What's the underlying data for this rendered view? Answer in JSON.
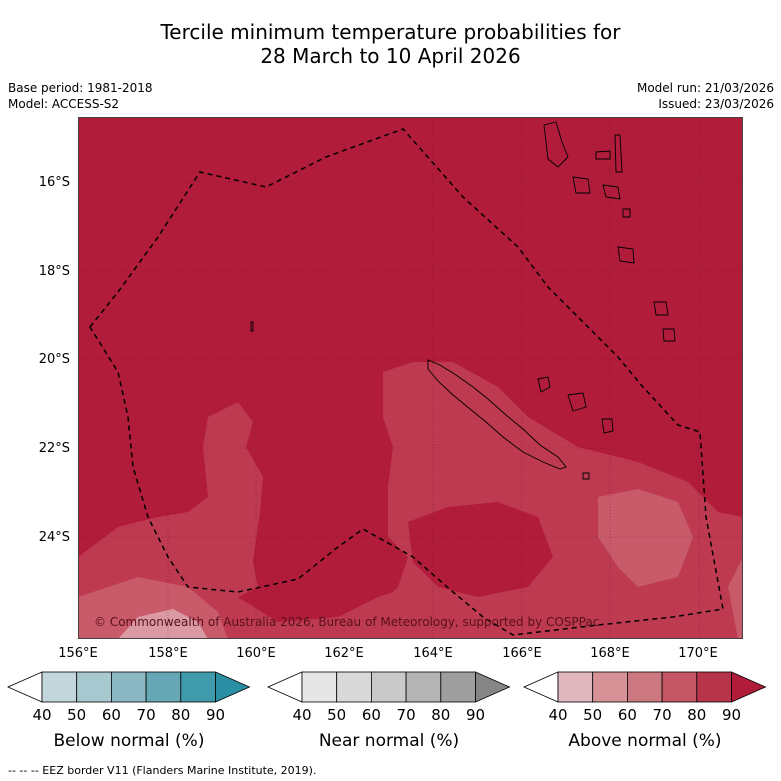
{
  "title_line1": "Tercile minimum temperature probabilities for",
  "title_line2": "28 March to 10 April 2026",
  "base_period": "Base period: 1981-2018",
  "model": "Model: ACCESS-S2",
  "model_run": "Model run: 21/03/2026",
  "issued": "Issued: 23/03/2026",
  "copyright": "© Commonwealth of Australia 2026, Bureau of Meteorology, supported by COSPPac",
  "footnote": "--  --  -- EEZ border V11 (Flanders Marine Institute, 2019).",
  "map": {
    "lat_labels": [
      "16°S",
      "18°S",
      "20°S",
      "22°S",
      "24°S"
    ],
    "lon_labels": [
      "156°E",
      "158°E",
      "160°E",
      "162°E",
      "164°E",
      "166°E",
      "168°E",
      "170°E"
    ],
    "base_color": "#b01c3a",
    "lighter_color": "#bd3a50",
    "lightest_color": "#c85a6a",
    "pale_color": "#d99aa3"
  },
  "colorbars": [
    {
      "name": "Below normal (%)",
      "ticks": [
        "40",
        "50",
        "60",
        "70",
        "80",
        "90"
      ],
      "colors": [
        "#c2d6dc",
        "#a7c8cf",
        "#8bb8c2",
        "#66a7b5",
        "#3f9aab",
        "#2a8fa3"
      ]
    },
    {
      "name": "Near normal (%)",
      "ticks": [
        "40",
        "50",
        "60",
        "70",
        "80",
        "90"
      ],
      "colors": [
        "#e6e6e6",
        "#d9d9d9",
        "#c9c9c9",
        "#b5b5b5",
        "#9e9e9e",
        "#868686"
      ]
    },
    {
      "name": "Above normal (%)",
      "ticks": [
        "40",
        "50",
        "60",
        "70",
        "80",
        "90"
      ],
      "colors": [
        "#dfb7bd",
        "#d69297",
        "#cc7880",
        "#c35564",
        "#b8344b",
        "#b01c3a"
      ]
    }
  ]
}
